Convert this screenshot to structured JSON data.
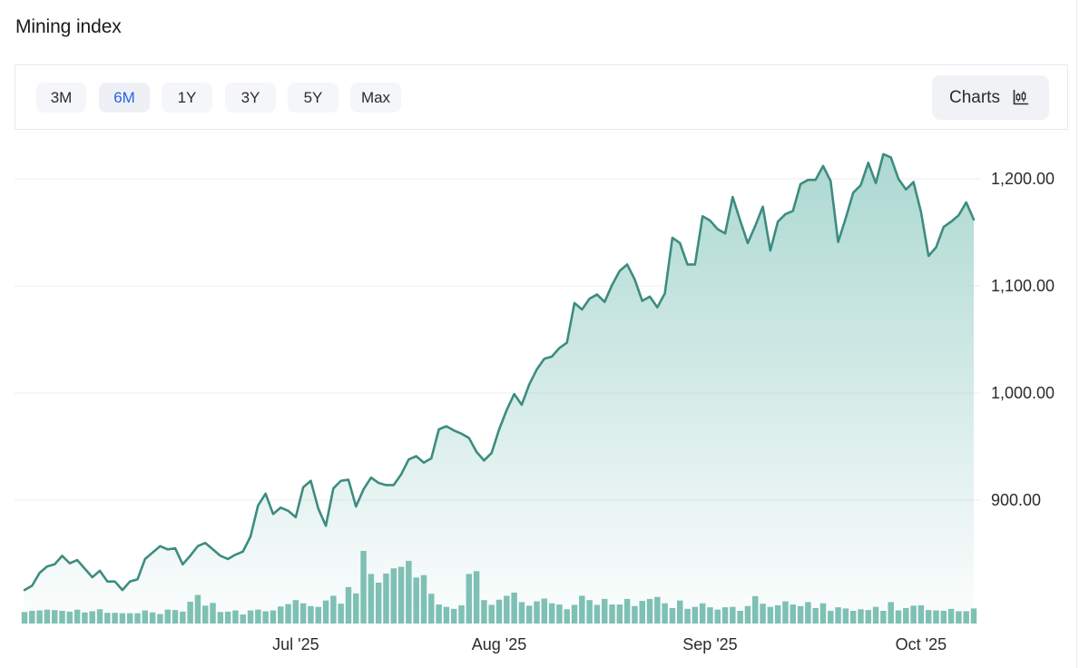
{
  "page": {
    "title": "Mining index"
  },
  "toolbar": {
    "ranges": [
      {
        "label": "3M",
        "active": false
      },
      {
        "label": "6M",
        "active": true
      },
      {
        "label": "1Y",
        "active": false
      },
      {
        "label": "3Y",
        "active": false
      },
      {
        "label": "5Y",
        "active": false
      },
      {
        "label": "Max",
        "active": false
      }
    ],
    "charts_label": "Charts",
    "charts_icon": "candlestick-chart-icon"
  },
  "colors": {
    "line": "#3d8c80",
    "area_top": "#a8d6cf",
    "volume": "#7fc0b4",
    "active_range": "#2563eb",
    "grid": "#ececef"
  },
  "chart_data": {
    "type": "area",
    "title": "",
    "xlabel": "",
    "ylabel": "",
    "ylim": [
      810,
      1230
    ],
    "y_ticks": [
      {
        "value": 1200,
        "label": "1,200.00"
      },
      {
        "value": 1100,
        "label": "1,100.00"
      },
      {
        "value": 1000,
        "label": "1,000.00"
      },
      {
        "value": 900,
        "label": "900.00"
      }
    ],
    "x_ticks": [
      {
        "index": 36,
        "label": "Jul '25"
      },
      {
        "index": 63,
        "label": "Aug '25"
      },
      {
        "index": 91,
        "label": "Sep '25"
      },
      {
        "index": 119,
        "label": "Oct '25"
      }
    ],
    "grid": true,
    "legend": "none",
    "series": [
      {
        "type": "line",
        "values": [
          816,
          820,
          832,
          838,
          840,
          848,
          841,
          844,
          836,
          828,
          834,
          824,
          824,
          816,
          824,
          826,
          845,
          851,
          857,
          854,
          855,
          840,
          848,
          857,
          860,
          854,
          848,
          845,
          849,
          852,
          866,
          895,
          906,
          887,
          893,
          890,
          884,
          912,
          918,
          892,
          876,
          911,
          918,
          919,
          894,
          910,
          921,
          916,
          914,
          914,
          924,
          938,
          941,
          935,
          939,
          966,
          969,
          965,
          962,
          958,
          945,
          937,
          944,
          966,
          984,
          999,
          989,
          1008,
          1022,
          1032,
          1034,
          1042,
          1047,
          1084,
          1078,
          1088,
          1092,
          1085,
          1101,
          1114,
          1120,
          1106,
          1086,
          1090,
          1080,
          1093,
          1145,
          1140,
          1120,
          1120,
          1165,
          1161,
          1153,
          1149,
          1183,
          1161,
          1140,
          1156,
          1174,
          1133,
          1160,
          1167,
          1170,
          1195,
          1199,
          1199,
          1212,
          1198,
          1141,
          1163,
          1187,
          1194,
          1215,
          1196,
          1223,
          1220,
          1200,
          1190,
          1197,
          1169,
          1128,
          1136,
          1155,
          1160,
          1166,
          1178,
          1162
        ]
      },
      {
        "type": "bar",
        "name": "",
        "values": [
          2.9,
          3.2,
          3.3,
          3.5,
          3.4,
          3.2,
          3.0,
          3.5,
          2.8,
          3.1,
          3.6,
          2.7,
          2.7,
          2.6,
          2.6,
          2.6,
          3.3,
          2.8,
          2.4,
          3.5,
          3.4,
          3.0,
          5.5,
          7.2,
          4.5,
          5.2,
          2.9,
          3.0,
          3.3,
          2.3,
          3.3,
          3.5,
          3.1,
          3.3,
          4.3,
          4.9,
          5.9,
          5.1,
          4.4,
          4.2,
          5.8,
          7.0,
          5.0,
          9.2,
          7.6,
          18.3,
          12.5,
          10.3,
          12.6,
          13.9,
          14.3,
          15.8,
          11.6,
          12.2,
          7.5,
          4.8,
          4.2,
          3.7,
          4.6,
          12.5,
          13.2,
          5.9,
          4.7,
          6.0,
          7.0,
          7.8,
          5.4,
          4.5,
          5.6,
          6.3,
          5.1,
          4.8,
          3.6,
          4.7,
          7.0,
          5.9,
          4.7,
          6.2,
          4.8,
          4.8,
          6.2,
          4.4,
          5.7,
          6.2,
          6.7,
          5.1,
          3.9,
          5.8,
          3.7,
          4.2,
          5.1,
          4.1,
          3.5,
          4.1,
          4.2,
          3.2,
          4.4,
          6.9,
          5.0,
          4.2,
          4.6,
          5.6,
          4.8,
          4.4,
          5.4,
          3.9,
          5.1,
          3.2,
          4.1,
          3.8,
          3.2,
          3.6,
          3.4,
          4.2,
          3.2,
          5.4,
          3.3,
          3.9,
          4.5,
          4.6,
          3.4,
          3.3,
          3.2,
          3.7,
          3.1,
          3.1,
          3.8
        ]
      }
    ]
  }
}
